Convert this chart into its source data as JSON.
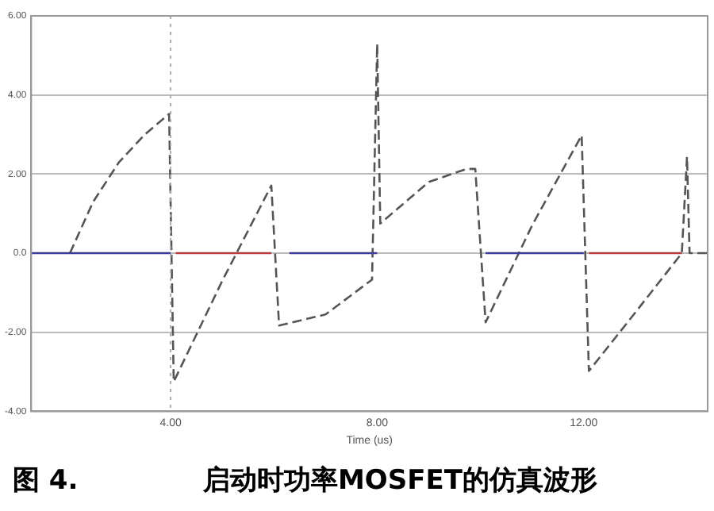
{
  "chart_data": {
    "type": "line",
    "title": "图 4.",
    "subtitle": "启动时功率MOSFET的仿真波形",
    "xlabel": "Time (us)",
    "xlim": [
      1.3,
      14.4
    ],
    "ylim": [
      -4,
      6
    ],
    "xticks": [
      {
        "value": 4,
        "label": "4.00"
      },
      {
        "value": 8,
        "label": "8.00"
      },
      {
        "value": 12,
        "label": "12.00"
      }
    ],
    "yticks": [
      {
        "value": -4,
        "label": "-4.00"
      },
      {
        "value": -2,
        "label": "-2.00"
      },
      {
        "value": 0,
        "label": "0.0"
      },
      {
        "value": 2,
        "label": "2.00"
      },
      {
        "value": 4,
        "label": "4.00"
      },
      {
        "value": 6,
        "label": "6.00"
      }
    ],
    "grid": "y",
    "legend": false,
    "marker": "none",
    "ref_lines": [
      {
        "axis": "x",
        "value": 4,
        "label": null,
        "color": "#aaaaaa",
        "line_style": "dotted"
      }
    ],
    "series": [
      {
        "color": "#3c3c96",
        "line_style": "solid",
        "x": [
          1.3,
          4.0,
          4.05,
          6.3,
          8.0,
          8.05,
          10.1,
          12.0
        ],
        "values": [
          0,
          0,
          null,
          0,
          0,
          null,
          0,
          0
        ]
      },
      {
        "color": "#b43c3c",
        "line_style": "solid",
        "x": [
          4.1,
          5.95,
          6.0,
          12.1,
          13.9
        ],
        "values": [
          0,
          0,
          null,
          0,
          0
        ]
      },
      {
        "color": "#555555",
        "line_style": "dashed",
        "x": [
          2.05,
          2.5,
          3.0,
          3.5,
          3.97,
          4.06,
          5.0,
          5.95,
          6.1,
          7.0,
          7.9,
          8.0,
          8.06,
          9.0,
          9.73,
          9.9,
          10.1,
          11.0,
          11.96,
          12.1,
          13.0,
          13.9,
          14.0,
          14.05,
          14.4
        ],
        "values": [
          0,
          1.3,
          2.3,
          3.0,
          3.52,
          -3.25,
          -0.7,
          1.71,
          -1.83,
          -1.55,
          -0.67,
          5.29,
          0.75,
          1.8,
          2.13,
          2.13,
          -1.75,
          0.7,
          2.98,
          -2.98,
          -1.5,
          0,
          2.44,
          0,
          0
        ]
      }
    ]
  }
}
